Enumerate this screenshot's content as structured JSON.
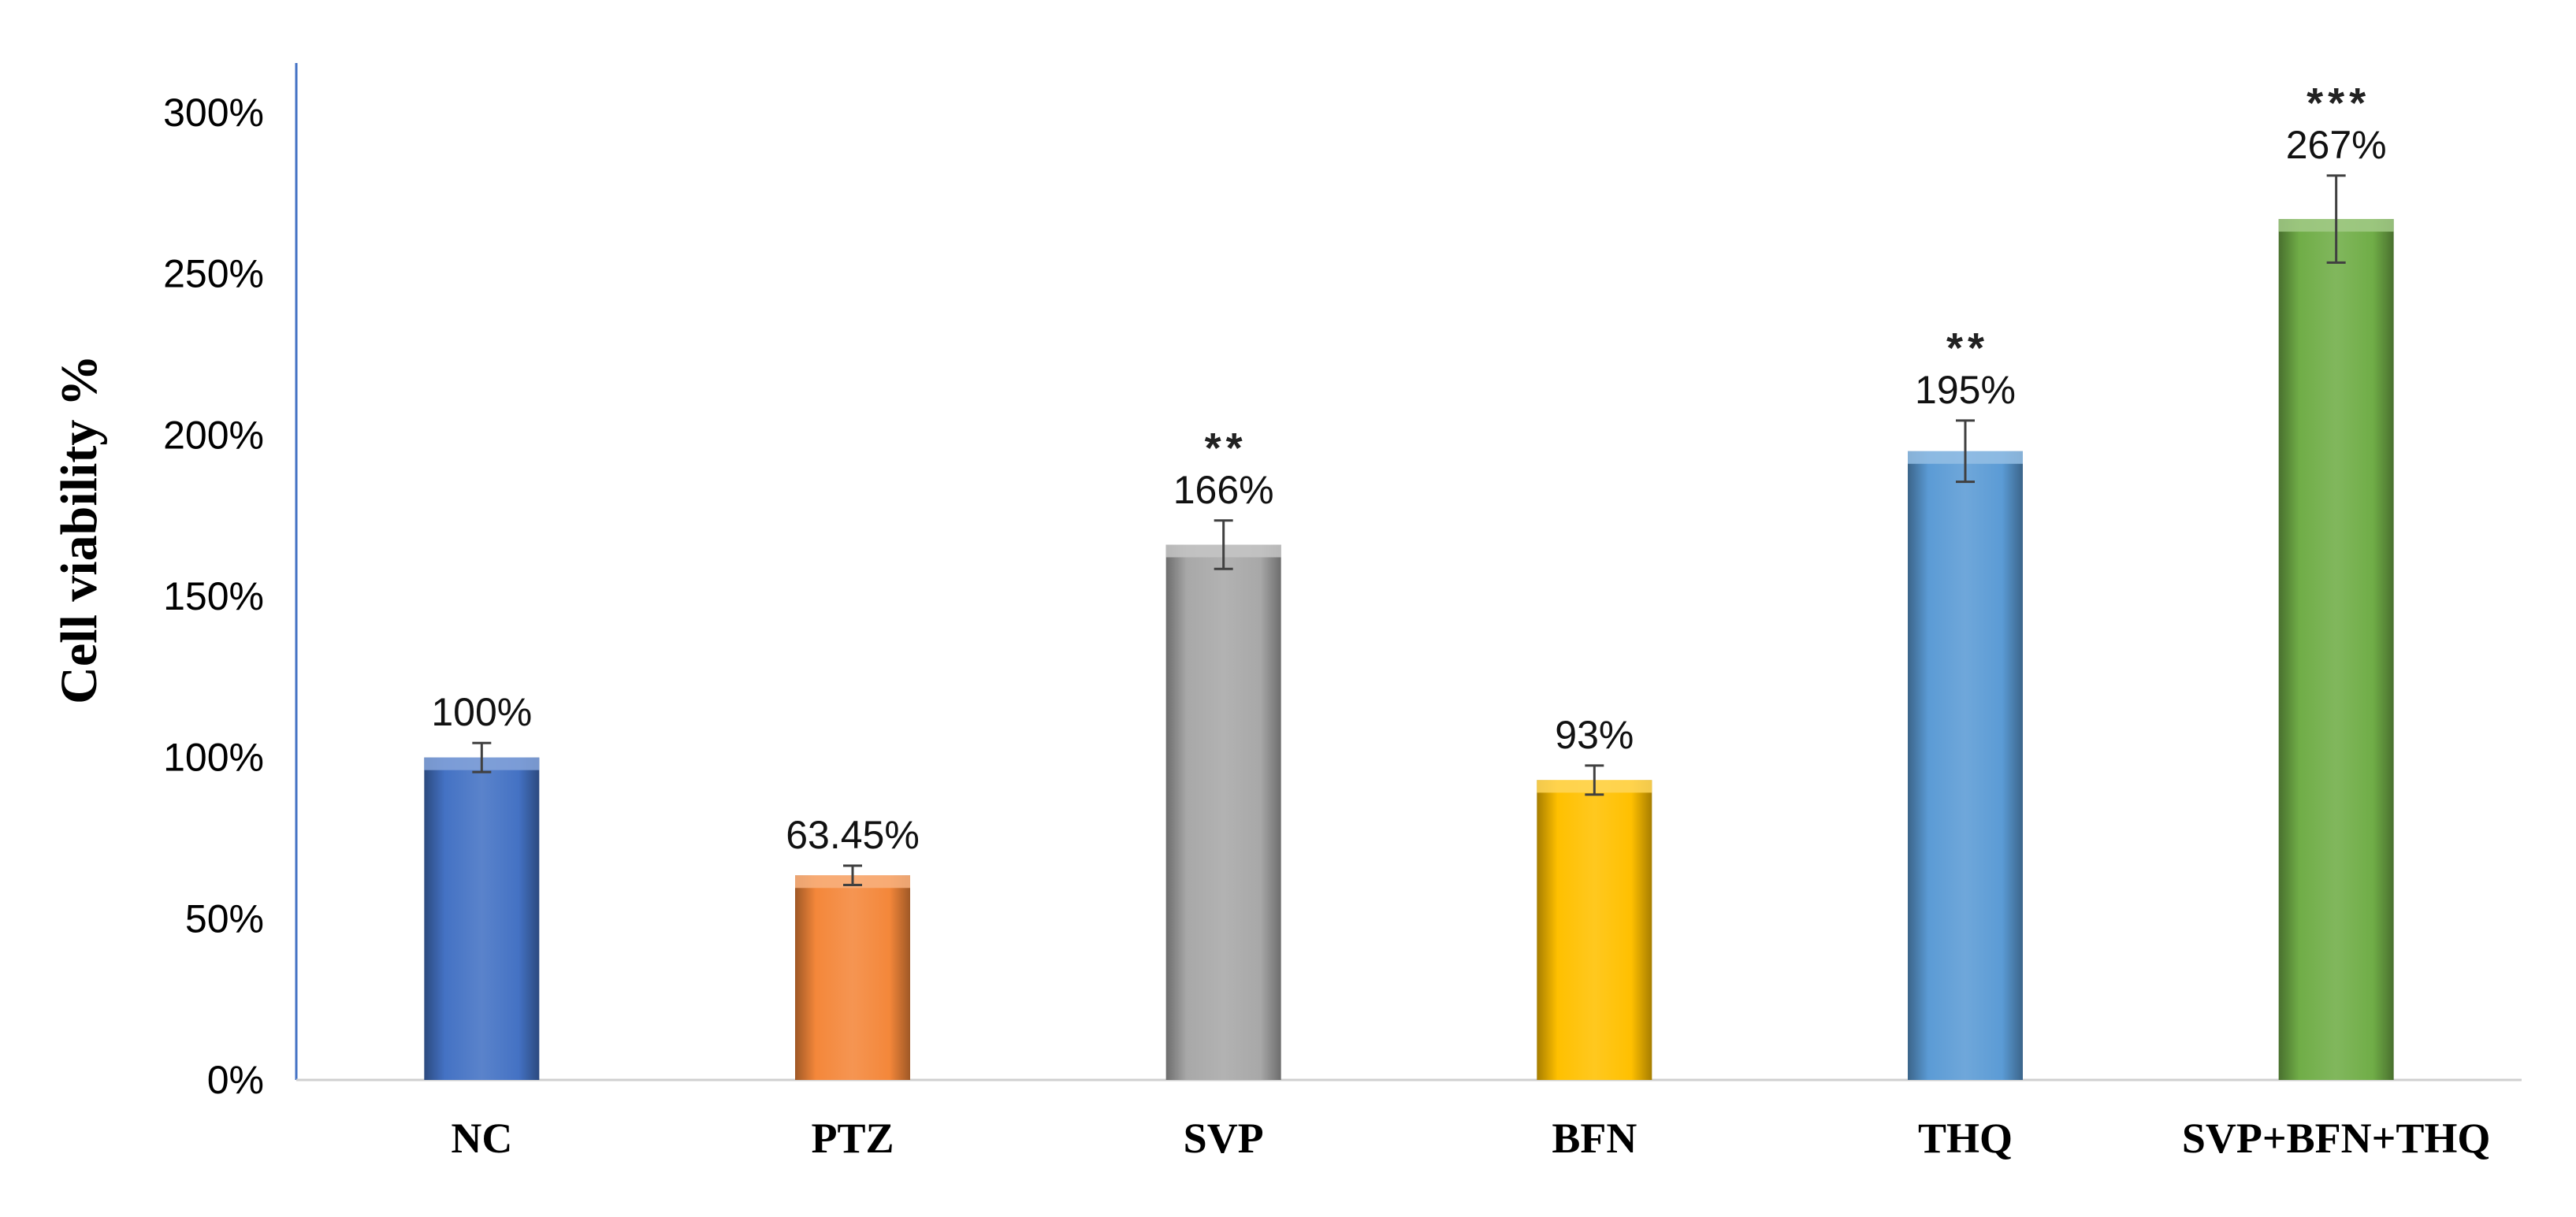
{
  "chart_data": {
    "type": "bar",
    "title": "",
    "xlabel": "",
    "ylabel": "Cell viability  %",
    "ylim": [
      0,
      300
    ],
    "yticks": [
      0,
      50,
      100,
      150,
      200,
      250,
      300
    ],
    "ytick_labels": [
      "0%",
      "50%",
      "100%",
      "150%",
      "200%",
      "250%",
      "300%"
    ],
    "grid": false,
    "legend": "none",
    "categories": [
      "NC",
      "PTZ",
      "SVP",
      "BFN",
      "THQ",
      "SVP+BFN+THQ"
    ],
    "values": [
      100,
      63.45,
      166,
      93,
      195,
      267
    ],
    "errors": [
      4.5,
      3,
      7.5,
      4.5,
      9.5,
      13.5
    ],
    "data_labels": [
      "100%",
      "63.45%",
      "166%",
      "93%",
      "195%",
      "267%"
    ],
    "significance": [
      "",
      "",
      "**",
      "",
      "**",
      "***"
    ],
    "colors": [
      "#4472C4",
      "#F4873A",
      "#A8A8A8",
      "#FFC000",
      "#5B9BD5",
      "#70AD47"
    ]
  }
}
